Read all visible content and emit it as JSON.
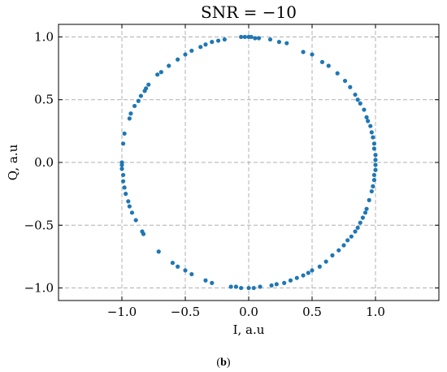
{
  "chart_data": {
    "type": "scatter",
    "title": "SNR = −10",
    "xlabel": "I, a.u",
    "ylabel": "Q, a.u",
    "xlim": [
      -1.5,
      1.5
    ],
    "ylim": [
      -1.1,
      1.1
    ],
    "xticks": [
      -1.0,
      -0.5,
      0.0,
      0.5,
      1.0
    ],
    "xtick_labels": [
      "−1.0",
      "−0.5",
      "0.0",
      "0.5",
      "1.0"
    ],
    "yticks": [
      -1.0,
      -0.5,
      0.0,
      0.5,
      1.0
    ],
    "ytick_labels": [
      "−1.0",
      "−0.5",
      "0.0",
      "0.5",
      "1.0"
    ],
    "grid": true,
    "color": "#1f77b4",
    "points": [
      {
        "x": -0.06,
        "y": 1.0
      },
      {
        "x": -0.03,
        "y": 1.0
      },
      {
        "x": 0.0,
        "y": 1.0
      },
      {
        "x": 0.02,
        "y": 1.0
      },
      {
        "x": 0.05,
        "y": 0.99
      },
      {
        "x": 0.08,
        "y": 0.99
      },
      {
        "x": 0.17,
        "y": 0.98
      },
      {
        "x": 0.24,
        "y": 0.96
      },
      {
        "x": 0.3,
        "y": 0.95
      },
      {
        "x": 0.43,
        "y": 0.88
      },
      {
        "x": 0.5,
        "y": 0.86
      },
      {
        "x": 0.58,
        "y": 0.8
      },
      {
        "x": 0.63,
        "y": 0.77
      },
      {
        "x": 0.7,
        "y": 0.71
      },
      {
        "x": 0.76,
        "y": 0.65
      },
      {
        "x": 0.8,
        "y": 0.6
      },
      {
        "x": 0.84,
        "y": 0.54
      },
      {
        "x": 0.86,
        "y": 0.5
      },
      {
        "x": 0.88,
        "y": 0.47
      },
      {
        "x": 0.91,
        "y": 0.42
      },
      {
        "x": 0.93,
        "y": 0.36
      },
      {
        "x": 0.94,
        "y": 0.33
      },
      {
        "x": 0.96,
        "y": 0.29
      },
      {
        "x": 0.97,
        "y": 0.24
      },
      {
        "x": 0.98,
        "y": 0.2
      },
      {
        "x": 0.99,
        "y": 0.15
      },
      {
        "x": 0.99,
        "y": 0.11
      },
      {
        "x": 1.0,
        "y": 0.06
      },
      {
        "x": 1.0,
        "y": 0.02
      },
      {
        "x": 1.0,
        "y": -0.02
      },
      {
        "x": 1.0,
        "y": -0.06
      },
      {
        "x": 0.99,
        "y": -0.1
      },
      {
        "x": 0.99,
        "y": -0.14
      },
      {
        "x": 0.98,
        "y": -0.19
      },
      {
        "x": 0.97,
        "y": -0.23
      },
      {
        "x": 0.95,
        "y": -0.3
      },
      {
        "x": 0.93,
        "y": -0.37
      },
      {
        "x": 0.92,
        "y": -0.4
      },
      {
        "x": 0.9,
        "y": -0.44
      },
      {
        "x": 0.88,
        "y": -0.48
      },
      {
        "x": 0.86,
        "y": -0.52
      },
      {
        "x": 0.84,
        "y": -0.55
      },
      {
        "x": 0.81,
        "y": -0.59
      },
      {
        "x": 0.78,
        "y": -0.62
      },
      {
        "x": 0.75,
        "y": -0.66
      },
      {
        "x": 0.71,
        "y": -0.7
      },
      {
        "x": 0.66,
        "y": -0.74
      },
      {
        "x": 0.61,
        "y": -0.79
      },
      {
        "x": 0.56,
        "y": -0.83
      },
      {
        "x": 0.5,
        "y": -0.86
      },
      {
        "x": 0.47,
        "y": -0.88
      },
      {
        "x": 0.43,
        "y": -0.9
      },
      {
        "x": 0.38,
        "y": -0.92
      },
      {
        "x": 0.33,
        "y": -0.94
      },
      {
        "x": 0.28,
        "y": -0.96
      },
      {
        "x": 0.22,
        "y": -0.97
      },
      {
        "x": 0.18,
        "y": -0.98
      },
      {
        "x": 0.09,
        "y": -0.99
      },
      {
        "x": 0.04,
        "y": -1.0
      },
      {
        "x": 0.0,
        "y": -1.0
      },
      {
        "x": -0.06,
        "y": -1.0
      },
      {
        "x": -0.1,
        "y": -0.99
      },
      {
        "x": -0.14,
        "y": -0.99
      },
      {
        "x": -0.29,
        "y": -0.96
      },
      {
        "x": -0.34,
        "y": -0.94
      },
      {
        "x": -0.45,
        "y": -0.89
      },
      {
        "x": -0.5,
        "y": -0.86
      },
      {
        "x": -0.56,
        "y": -0.83
      },
      {
        "x": -0.6,
        "y": -0.8
      },
      {
        "x": -0.71,
        "y": -0.71
      },
      {
        "x": -0.83,
        "y": -0.57
      },
      {
        "x": -0.84,
        "y": -0.55
      },
      {
        "x": -0.89,
        "y": -0.46
      },
      {
        "x": -0.92,
        "y": -0.4
      },
      {
        "x": -0.94,
        "y": -0.35
      },
      {
        "x": -0.95,
        "y": -0.31
      },
      {
        "x": -0.97,
        "y": -0.25
      },
      {
        "x": -0.98,
        "y": -0.2
      },
      {
        "x": -0.99,
        "y": -0.15
      },
      {
        "x": -0.99,
        "y": -0.1
      },
      {
        "x": -1.0,
        "y": -0.05
      },
      {
        "x": -1.0,
        "y": -0.02
      },
      {
        "x": -1.0,
        "y": 0.0
      },
      {
        "x": -0.99,
        "y": 0.15
      },
      {
        "x": -0.98,
        "y": 0.23
      },
      {
        "x": -0.94,
        "y": 0.35
      },
      {
        "x": -0.93,
        "y": 0.39
      },
      {
        "x": -0.9,
        "y": 0.45
      },
      {
        "x": -0.87,
        "y": 0.49
      },
      {
        "x": -0.85,
        "y": 0.53
      },
      {
        "x": -0.82,
        "y": 0.57
      },
      {
        "x": -0.81,
        "y": 0.59
      },
      {
        "x": -0.79,
        "y": 0.62
      },
      {
        "x": -0.72,
        "y": 0.7
      },
      {
        "x": -0.69,
        "y": 0.72
      },
      {
        "x": -0.63,
        "y": 0.77
      },
      {
        "x": -0.56,
        "y": 0.82
      },
      {
        "x": -0.5,
        "y": 0.86
      },
      {
        "x": -0.45,
        "y": 0.89
      },
      {
        "x": -0.38,
        "y": 0.92
      },
      {
        "x": -0.34,
        "y": 0.94
      },
      {
        "x": -0.29,
        "y": 0.96
      },
      {
        "x": -0.24,
        "y": 0.97
      },
      {
        "x": -0.19,
        "y": 0.98
      }
    ]
  },
  "caption": {
    "open": "(",
    "letter": "b",
    "close": ")"
  }
}
